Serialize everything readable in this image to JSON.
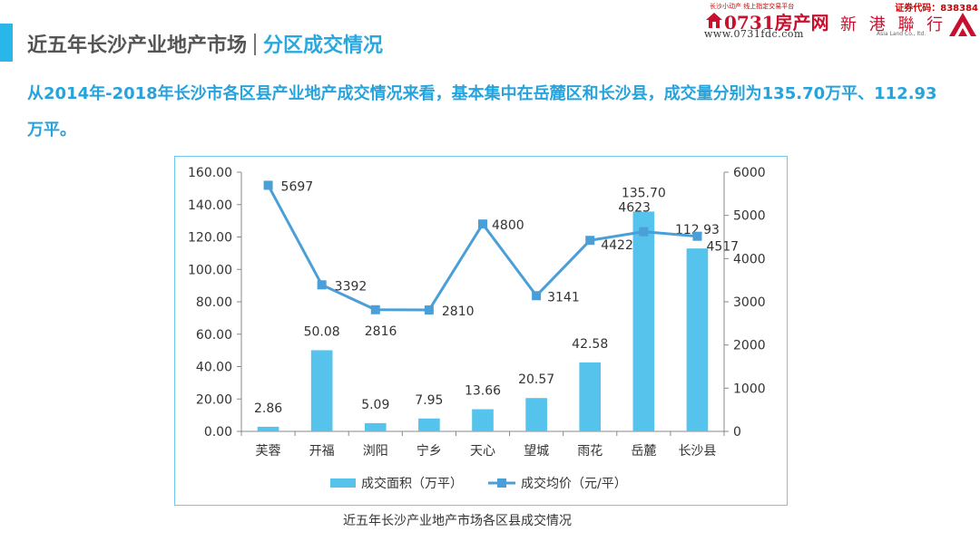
{
  "header": {
    "title": "近五年长沙产业地产市场",
    "subtitle": "分区成交情况"
  },
  "logos": {
    "site": {
      "tagline": "长沙小动产 线上指定交易平台",
      "brand": "0731房产网",
      "url": "www.0731fdc.com"
    },
    "company": {
      "stock_code": "证券代码：838384",
      "name_cn": "新 港 聯 行",
      "name_en": "Asia Land Co., ltd."
    }
  },
  "summary": "从2014年-2018年长沙市各区县产业地产成交情况来看，基本集中在岳麓区和长沙县，成交量分别为135.70万平、112.93万平。",
  "caption": "近五年长沙产业地产市场各区县成交情况",
  "colors": {
    "bar": "#55c3eb",
    "line": "#4a9fd8",
    "accent": "#29b6e8",
    "frame": "#6cc8ee"
  },
  "chart_data": {
    "type": "bar",
    "categories": [
      "芙蓉",
      "开福",
      "浏阳",
      "宁乡",
      "天心",
      "望城",
      "雨花",
      "岳麓",
      "长沙县"
    ],
    "series": [
      {
        "name": "成交面积（万平）",
        "type": "bar",
        "axis": "left",
        "values": [
          2.86,
          50.08,
          5.09,
          7.95,
          13.66,
          20.57,
          42.58,
          135.7,
          112.93
        ],
        "labels": [
          "2.86",
          "50.08",
          "5.09",
          "7.95",
          "13.66",
          "20.57",
          "42.58",
          "135.70",
          "112.93"
        ]
      },
      {
        "name": "成交均价（元/平）",
        "type": "line",
        "axis": "right",
        "values": [
          5697,
          3392,
          2816,
          2810,
          4800,
          3141,
          4422,
          4623,
          4517
        ],
        "labels": [
          "5697",
          "3392",
          "2816",
          "2810",
          "4800",
          "3141",
          "4422",
          "4623",
          "4517"
        ]
      }
    ],
    "y_left": {
      "range": [
        0,
        160
      ],
      "ticks": [
        "0.00",
        "20.00",
        "40.00",
        "60.00",
        "80.00",
        "100.00",
        "120.00",
        "140.00",
        "160.00"
      ]
    },
    "y_right": {
      "range": [
        0,
        6000
      ],
      "ticks": [
        "0",
        "1000",
        "2000",
        "3000",
        "4000",
        "5000",
        "6000"
      ]
    },
    "grid": false,
    "legend_position": "bottom"
  }
}
